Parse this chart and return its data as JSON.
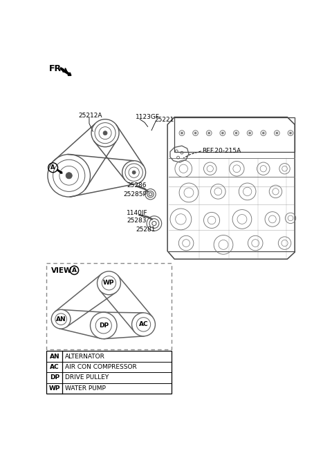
{
  "bg_color": "#ffffff",
  "legend_entries": [
    [
      "AN",
      "ALTERNATOR"
    ],
    [
      "AC",
      "AIR CON COMPRESSOR"
    ],
    [
      "DP",
      "DRIVE PULLEY"
    ],
    [
      "WP",
      "WATER PUMP"
    ]
  ]
}
